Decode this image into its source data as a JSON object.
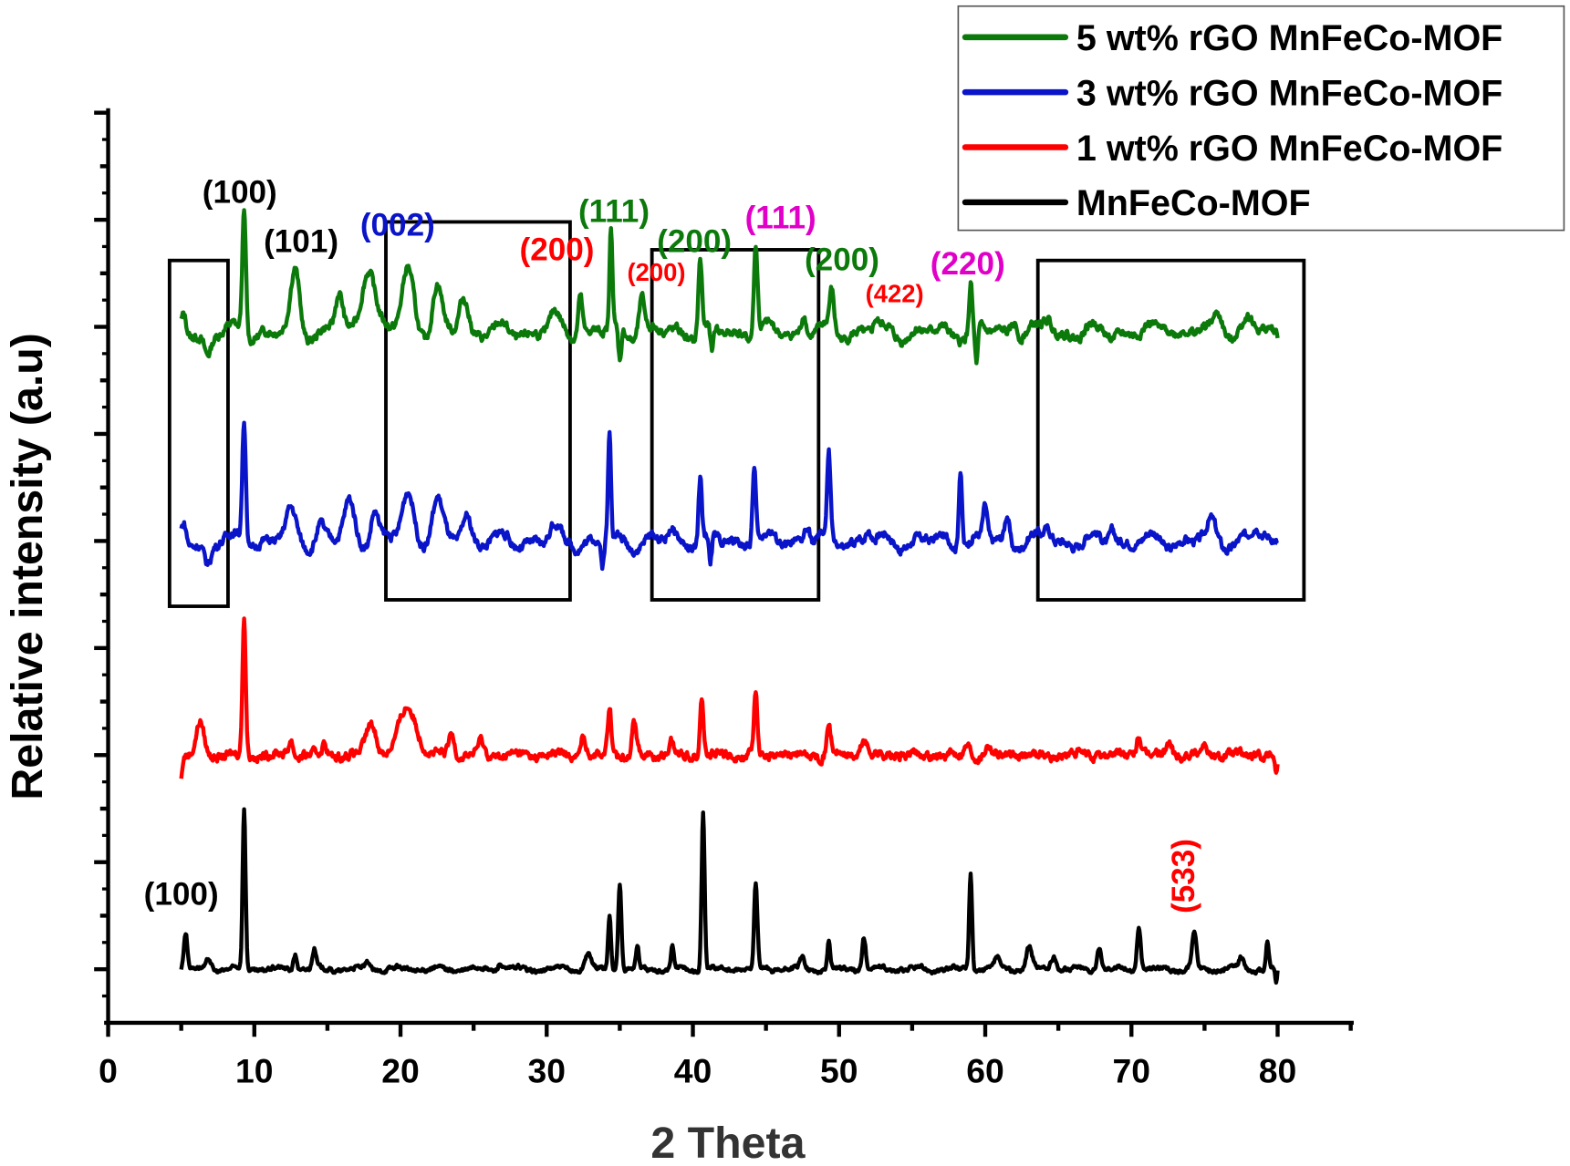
{
  "chart_data": {
    "type": "line",
    "title": "",
    "xlabel": "2 Theta",
    "ylabel": "Relative intensity (a.u)",
    "xlim": [
      0,
      85
    ],
    "ylim": [
      0,
      8.5
    ],
    "xticks": [
      0,
      10,
      20,
      30,
      40,
      50,
      60,
      70,
      80
    ],
    "yticks_major_step": 1,
    "y_tick_labels_shown": false,
    "grid": false,
    "legend_placement": "top-right",
    "series": [
      {
        "name": "5 wt% rGO MnFeCo-MOF",
        "color": "#0b7a0b",
        "baseline": 6.45,
        "x_range": [
          5,
          80
        ],
        "peaks": [
          [
            5.2,
            0.15,
            0.3
          ],
          [
            6.8,
            -0.2,
            0.5
          ],
          [
            9.3,
            1.15,
            0.25
          ],
          [
            12.8,
            0.55,
            0.6
          ],
          [
            15.8,
            0.35,
            0.5
          ],
          [
            17.8,
            0.65,
            0.9
          ],
          [
            20.5,
            0.6,
            0.8
          ],
          [
            22.5,
            0.4,
            0.6
          ],
          [
            24.3,
            0.35,
            0.6
          ],
          [
            30.5,
            0.15,
            0.6
          ],
          [
            32.3,
            0.4,
            0.3
          ],
          [
            34.4,
            0.95,
            0.2
          ],
          [
            35.0,
            -0.3,
            0.2
          ],
          [
            36.5,
            0.35,
            0.4
          ],
          [
            40.5,
            0.7,
            0.25
          ],
          [
            41.3,
            -0.25,
            0.2
          ],
          [
            44.3,
            0.85,
            0.25
          ],
          [
            47.6,
            0.2,
            0.3
          ],
          [
            49.5,
            0.35,
            0.3
          ],
          [
            52.5,
            0.1,
            0.3
          ],
          [
            59.0,
            0.45,
            0.2
          ],
          [
            59.4,
            -0.35,
            0.2
          ],
          [
            62.0,
            0.15,
            0.4
          ],
          [
            64.3,
            0.12,
            0.5
          ],
          [
            72.5,
            0.1,
            0.6
          ],
          [
            76.0,
            0.18,
            0.6
          ],
          [
            78.0,
            0.12,
            0.6
          ]
        ]
      },
      {
        "name": "3 wt% rGO MnFeCo-MOF",
        "color": "#0a14c8",
        "baseline": 4.5,
        "x_range": [
          5,
          80
        ],
        "peaks": [
          [
            5.2,
            0.15,
            0.3
          ],
          [
            6.8,
            -0.2,
            0.5
          ],
          [
            9.3,
            1.15,
            0.25
          ],
          [
            12.5,
            0.25,
            0.7
          ],
          [
            14.5,
            0.15,
            0.5
          ],
          [
            16.5,
            0.35,
            0.7
          ],
          [
            18.2,
            0.3,
            0.5
          ],
          [
            20.5,
            0.45,
            0.8
          ],
          [
            22.5,
            0.35,
            0.7
          ],
          [
            24.5,
            0.25,
            0.6
          ],
          [
            30.5,
            0.1,
            0.6
          ],
          [
            34.3,
            1.0,
            0.2
          ],
          [
            33.8,
            -0.25,
            0.2
          ],
          [
            38.5,
            0.1,
            0.4
          ],
          [
            40.5,
            0.6,
            0.22
          ],
          [
            41.2,
            -0.25,
            0.2
          ],
          [
            44.2,
            0.7,
            0.25
          ],
          [
            47.8,
            0.15,
            0.4
          ],
          [
            49.3,
            0.75,
            0.22
          ],
          [
            52.0,
            0.1,
            0.4
          ],
          [
            58.3,
            0.75,
            0.22
          ],
          [
            60.0,
            0.3,
            0.3
          ],
          [
            61.5,
            0.25,
            0.3
          ],
          [
            64.3,
            0.12,
            0.5
          ],
          [
            68.7,
            0.15,
            0.4
          ],
          [
            75.5,
            0.15,
            0.6
          ],
          [
            78.5,
            0.12,
            0.6
          ]
        ]
      },
      {
        "name": "1 wt% rGO MnFeCo-MOF",
        "color": "#ff0000",
        "baseline": 2.5,
        "x_range": [
          5,
          80
        ],
        "peaks": [
          [
            5.0,
            -0.2,
            0.15
          ],
          [
            6.3,
            0.3,
            0.5
          ],
          [
            9.3,
            1.3,
            0.22
          ],
          [
            12.5,
            0.15,
            0.3
          ],
          [
            14.8,
            0.1,
            0.3
          ],
          [
            18.0,
            0.3,
            0.7
          ],
          [
            20.5,
            0.45,
            1.2
          ],
          [
            23.5,
            0.2,
            0.4
          ],
          [
            25.5,
            0.12,
            0.4
          ],
          [
            32.5,
            0.2,
            0.3
          ],
          [
            34.3,
            0.45,
            0.25
          ],
          [
            36.0,
            0.3,
            0.3
          ],
          [
            38.5,
            0.12,
            0.3
          ],
          [
            40.6,
            0.55,
            0.25
          ],
          [
            44.3,
            0.6,
            0.22
          ],
          [
            49.3,
            0.3,
            0.25
          ],
          [
            51.7,
            0.15,
            0.4
          ],
          [
            58.8,
            0.1,
            0.4
          ],
          [
            60.2,
            0.1,
            0.4
          ],
          [
            70.5,
            0.2,
            0.3
          ],
          [
            72.6,
            0.12,
            0.4
          ],
          [
            75.0,
            0.1,
            0.4
          ],
          [
            79.9,
            -0.2,
            0.15
          ]
        ]
      },
      {
        "name": "MnFeCo-MOF",
        "color": "#000000",
        "baseline": 0.5,
        "x_range": [
          5,
          80
        ],
        "peaks": [
          [
            5.3,
            0.35,
            0.25
          ],
          [
            6.9,
            0.1,
            0.3
          ],
          [
            9.3,
            1.5,
            0.2
          ],
          [
            12.8,
            0.15,
            0.25
          ],
          [
            14.1,
            0.18,
            0.25
          ],
          [
            17.8,
            0.07,
            0.3
          ],
          [
            26.8,
            0.07,
            0.3
          ],
          [
            32.8,
            0.15,
            0.4
          ],
          [
            34.3,
            0.5,
            0.2
          ],
          [
            35.0,
            0.8,
            0.22
          ],
          [
            36.2,
            0.2,
            0.2
          ],
          [
            38.6,
            0.2,
            0.2
          ],
          [
            40.7,
            1.5,
            0.2
          ],
          [
            44.3,
            0.8,
            0.22
          ],
          [
            47.5,
            0.1,
            0.3
          ],
          [
            49.3,
            0.25,
            0.2
          ],
          [
            51.7,
            0.3,
            0.25
          ],
          [
            59.0,
            0.9,
            0.2
          ],
          [
            60.8,
            0.1,
            0.3
          ],
          [
            63.0,
            0.2,
            0.4
          ],
          [
            64.7,
            0.12,
            0.4
          ],
          [
            67.8,
            0.2,
            0.3
          ],
          [
            70.5,
            0.4,
            0.25
          ],
          [
            74.3,
            0.35,
            0.3
          ],
          [
            77.5,
            0.1,
            0.3
          ],
          [
            79.3,
            0.25,
            0.2
          ],
          [
            79.9,
            -0.15,
            0.12
          ]
        ]
      }
    ],
    "annotations": [
      {
        "text": "(100)",
        "color": "#000000",
        "x": 9.0,
        "y": 7.66
      },
      {
        "text": "(101)",
        "color": "#000000",
        "x": 13.2,
        "y": 7.2
      },
      {
        "text": "(002)",
        "color": "#0a14c8",
        "x": 19.8,
        "y": 7.35
      },
      {
        "text": "(200)",
        "color": "#ff0000",
        "x": 30.7,
        "y": 7.12
      },
      {
        "text": "(111)",
        "color": "#0b7a0b",
        "x": 34.6,
        "y": 7.48
      },
      {
        "text": "(200)",
        "color": "#ff0000",
        "x": 37.5,
        "y": 6.93,
        "small": true
      },
      {
        "text": "(200)",
        "color": "#0b7a0b",
        "x": 40.1,
        "y": 7.2
      },
      {
        "text": "(111)",
        "color": "#e000c8",
        "x": 46.0,
        "y": 7.42
      },
      {
        "text": "(200)",
        "color": "#0b7a0b",
        "x": 50.2,
        "y": 7.03
      },
      {
        "text": "(422)",
        "color": "#ff0000",
        "x": 53.8,
        "y": 6.73,
        "small": true
      },
      {
        "text": "(220)",
        "color": "#e000c8",
        "x": 58.8,
        "y": 6.99
      },
      {
        "text": "(100)",
        "color": "#000000",
        "x": 5.0,
        "y": 1.1
      },
      {
        "text": "(533)",
        "color": "#ff0000",
        "x": 74.3,
        "y": 1.37,
        "rotated": true
      }
    ],
    "highlight_boxes": [
      {
        "x": [
          4.2,
          8.2
        ],
        "y": [
          3.89,
          7.12
        ]
      },
      {
        "x": [
          19.0,
          31.6
        ],
        "y": [
          3.95,
          7.48
        ]
      },
      {
        "x": [
          37.2,
          48.6
        ],
        "y": [
          3.95,
          7.22
        ]
      },
      {
        "x": [
          63.6,
          81.8
        ],
        "y": [
          3.95,
          7.12
        ]
      }
    ]
  }
}
